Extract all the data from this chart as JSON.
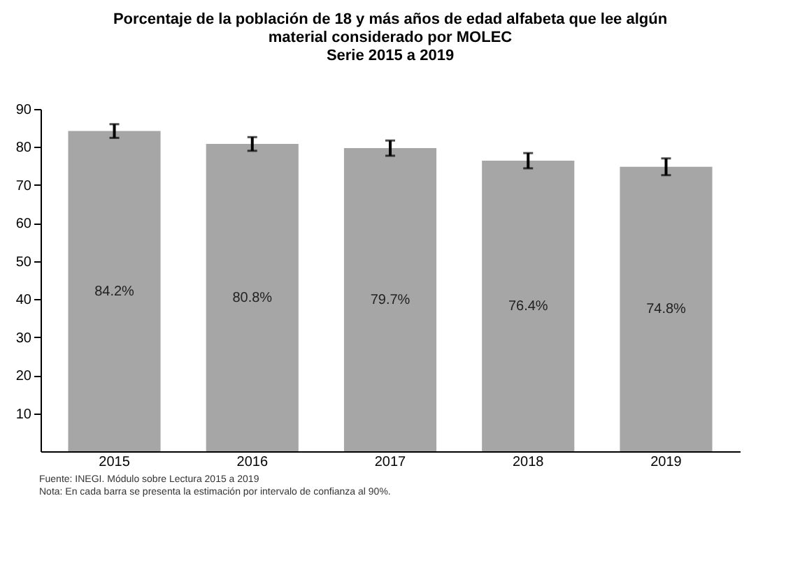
{
  "chart_data": {
    "type": "bar",
    "title": "Porcentaje de la población de 18 y más años de edad alfabeta que lee algún\nmaterial considerado por MOLEC\nSerie 2015 a 2019",
    "categories": [
      "2015",
      "2016",
      "2017",
      "2018",
      "2019"
    ],
    "values": [
      84.2,
      80.8,
      79.7,
      76.4,
      74.8
    ],
    "errors": [
      1.8,
      1.8,
      2.0,
      2.0,
      2.2
    ],
    "value_labels": [
      "84.2%",
      "80.8%",
      "79.7%",
      "76.4%",
      "74.8%"
    ],
    "color": "#a6a6a6",
    "ylim": [
      0,
      90
    ],
    "yticks": [
      10,
      20,
      30,
      40,
      50,
      60,
      70,
      80,
      90
    ],
    "grid": false,
    "annotations": [
      "Fuente: INEGI. Módulo sobre Lectura 2015 a 2019",
      "Nota: En cada barra se presenta la estimación por intervalo de confianza al 90%."
    ]
  }
}
